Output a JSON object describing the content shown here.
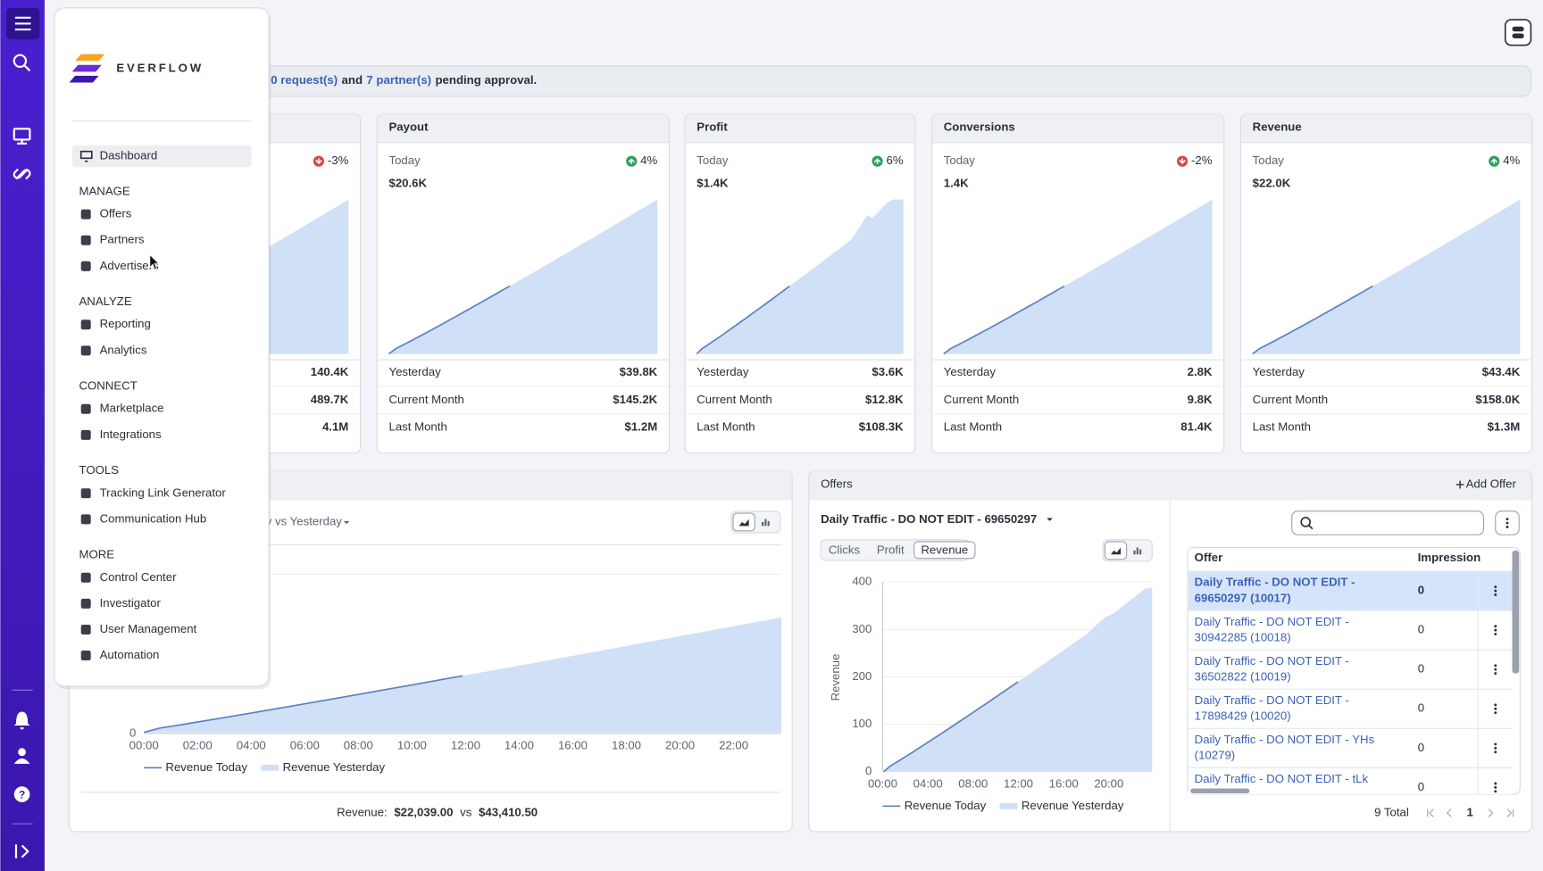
{
  "brand": "EVERFLOW",
  "nav": {
    "active": "Dashboard",
    "sections": [
      {
        "title": "MANAGE",
        "items": [
          "Offers",
          "Partners",
          "Advertisers"
        ]
      },
      {
        "title": "ANALYZE",
        "items": [
          "Reporting",
          "Analytics"
        ]
      },
      {
        "title": "CONNECT",
        "items": [
          "Marketplace",
          "Integrations"
        ]
      },
      {
        "title": "TOOLS",
        "items": [
          "Tracking Link Generator",
          "Communication Hub"
        ]
      },
      {
        "title": "MORE",
        "items": [
          "Control Center",
          "Investigator",
          "User Management",
          "Automation"
        ]
      }
    ]
  },
  "banner": {
    "link_requests": "0 request(s)",
    "and": "and",
    "link_partners": "7 partner(s)",
    "suffix": "pending approval."
  },
  "kpi_cards": [
    {
      "change": "-3%",
      "trend": "down",
      "rows": [
        {
          "value": "140.4K"
        },
        {
          "value": "489.7K"
        },
        {
          "value": "4.1M"
        }
      ]
    },
    {
      "title": "Payout",
      "today_label": "Today",
      "today_value": "$20.6K",
      "change": "4%",
      "trend": "up",
      "rows": [
        {
          "label": "Yesterday",
          "value": "$39.8K"
        },
        {
          "label": "Current Month",
          "value": "$145.2K"
        },
        {
          "label": "Last Month",
          "value": "$1.2M"
        }
      ]
    },
    {
      "title": "Profit",
      "today_label": "Today",
      "today_value": "$1.4K",
      "change": "6%",
      "trend": "up",
      "rows": [
        {
          "label": "Yesterday",
          "value": "$3.6K"
        },
        {
          "label": "Current Month",
          "value": "$12.8K"
        },
        {
          "label": "Last Month",
          "value": "$108.3K"
        }
      ]
    },
    {
      "title": "Conversions",
      "today_label": "Today",
      "today_value": "1.4K",
      "change": "-2%",
      "trend": "down",
      "rows": [
        {
          "label": "Yesterday",
          "value": "2.8K"
        },
        {
          "label": "Current Month",
          "value": "9.8K"
        },
        {
          "label": "Last Month",
          "value": "81.4K"
        }
      ]
    },
    {
      "title": "Revenue",
      "today_label": "Today",
      "today_value": "$22.0K",
      "change": "4%",
      "trend": "up",
      "rows": [
        {
          "label": "Yesterday",
          "value": "$43.4K"
        },
        {
          "label": "Current Month",
          "value": "$158.0K"
        },
        {
          "label": "Last Month",
          "value": "$1.3M"
        }
      ]
    }
  ],
  "revenue_panel": {
    "range_label": "y vs Yesterday",
    "xticks": [
      "00:00",
      "02:00",
      "04:00",
      "06:00",
      "08:00",
      "10:00",
      "12:00",
      "14:00",
      "16:00",
      "18:00",
      "20:00",
      "22:00"
    ],
    "y_min_label": "0",
    "legend": [
      "Revenue Today",
      "Revenue Yesterday"
    ],
    "summary": {
      "label": "Revenue:",
      "today": "$22,039.00",
      "vs": "vs",
      "yesterday": "$43,410.50"
    }
  },
  "offers_panel": {
    "title": "Offers",
    "add_button": "Add Offer",
    "selected_offer": "Daily Traffic - DO NOT EDIT - 69650297",
    "tabs": [
      "Clicks",
      "Profit",
      "Revenue"
    ],
    "active_tab": "Revenue",
    "y_axis_label": "Revenue",
    "ylim": [
      0,
      400
    ],
    "yticks": [
      0,
      100,
      200,
      300,
      400
    ],
    "xticks": [
      "00:00",
      "04:00",
      "08:00",
      "12:00",
      "16:00",
      "20:00"
    ],
    "legend": [
      "Revenue Today",
      "Revenue Yesterday"
    ],
    "table": {
      "columns": [
        "Offer",
        "Impression"
      ],
      "rows": [
        [
          [
            "Daily Traffic - DO NOT EDIT -",
            "69650297 (10017)"
          ],
          0
        ],
        [
          [
            "Daily Traffic - DO NOT EDIT -",
            "30942285 (10018)"
          ],
          0
        ],
        [
          [
            "Daily Traffic - DO NOT EDIT -",
            "36502822 (10019)"
          ],
          0
        ],
        [
          [
            "Daily Traffic - DO NOT EDIT -",
            "17898429 (10020)"
          ],
          0
        ],
        [
          [
            "Daily Traffic - DO NOT EDIT - YHs",
            "(10279)"
          ],
          0
        ],
        [
          [
            "Daily Traffic - DO NOT EDIT - tLk"
          ],
          0
        ]
      ]
    },
    "total": "9 Total",
    "page": "1"
  }
}
